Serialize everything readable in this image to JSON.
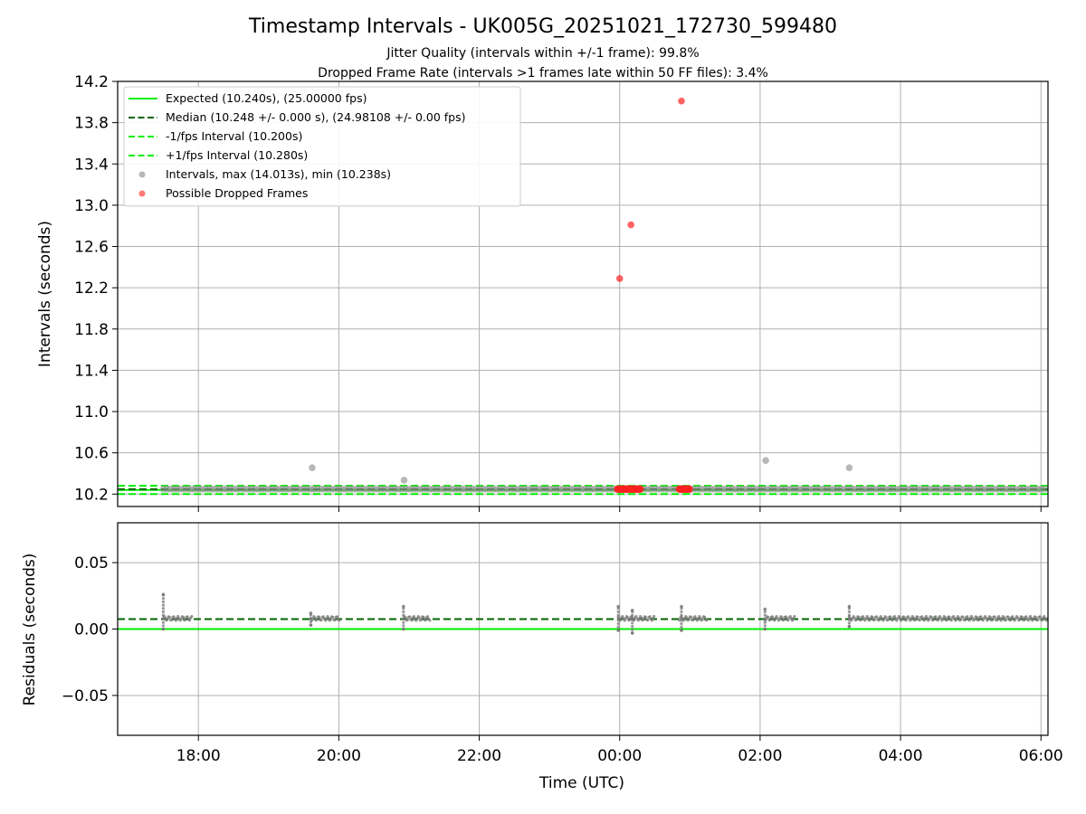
{
  "figure": {
    "title": "Timestamp Intervals - UK005G_20251021_172730_599480",
    "subtitle_jitter": "Jitter Quality (intervals within +/-1 frame): 99.8%",
    "subtitle_dropped": "Dropped Frame Rate (intervals >1 frames late within 50 FF files): 3.4%",
    "x_axis_label": "Time (UTC)"
  },
  "colors": {
    "expected": "#00ee00",
    "median": "#006400",
    "fps_interval": "#00ee00",
    "intervals": "#888888",
    "dropped": "#ff2020",
    "grid": "#b0b0b0"
  },
  "chart_data": [
    {
      "type": "scatter",
      "ylabel": "Intervals (seconds)",
      "xlim_hours": [
        16.85,
        30.1
      ],
      "ylim": [
        10.08,
        14.2
      ],
      "y_ticks": [
        "10.2",
        "10.6",
        "11.0",
        "11.4",
        "11.8",
        "12.2",
        "12.6",
        "13.0",
        "13.4",
        "13.8",
        "14.2"
      ],
      "grid": true,
      "legend_placement": "upper-left",
      "reference_lines": [
        {
          "name": "Expected (10.240s), (25.00000 fps)",
          "y": 10.24,
          "style": "solid",
          "color": "#00ee00"
        },
        {
          "name": "Median (10.248 +/- 0.000 s), (24.98108 +/- 0.00 fps)",
          "y": 10.248,
          "style": "dashed",
          "color": "#006400"
        },
        {
          "name": "-1/fps Interval (10.200s)",
          "y": 10.2,
          "style": "dashed",
          "color": "#00ee00"
        },
        {
          "name": "+1/fps Interval (10.280s)",
          "y": 10.28,
          "style": "dashed",
          "color": "#00ee00"
        }
      ],
      "series": [
        {
          "name": "Intervals, max (14.013s), min (10.238s)",
          "marker": "circle",
          "color": "#888888",
          "x_start_hours": 17.5,
          "x_end_hours": 30.1,
          "baseline_y": 10.248,
          "outliers": [
            [
              19.62,
              10.455
            ],
            [
              20.93,
              10.335
            ],
            [
              26.08,
              10.525
            ],
            [
              27.27,
              10.455
            ]
          ]
        },
        {
          "name": "Possible Dropped Frames",
          "marker": "circle",
          "color": "#ff2020",
          "points": [
            [
              24.0,
              12.29
            ],
            [
              24.16,
              12.81
            ],
            [
              24.88,
              14.01
            ]
          ],
          "clusters": [
            {
              "x_from": 23.97,
              "x_to": 24.3,
              "y": 10.248
            },
            {
              "x_from": 24.85,
              "x_to": 25.0,
              "y": 10.248
            }
          ]
        }
      ]
    },
    {
      "type": "scatter",
      "ylabel": "Residuals (seconds)",
      "xlim_hours": [
        16.85,
        30.1
      ],
      "ylim": [
        -0.08,
        0.08
      ],
      "y_ticks": [
        "−0.05",
        "0.00",
        "0.05"
      ],
      "y_tick_values": [
        -0.05,
        0,
        0.05
      ],
      "x_ticks": [
        "18:00",
        "20:00",
        "22:00",
        "00:00",
        "02:00",
        "04:00",
        "06:00"
      ],
      "x_tick_hours": [
        18,
        20,
        22,
        24,
        26,
        28,
        30
      ],
      "grid": true,
      "reference_lines": [
        {
          "name": "zero",
          "y": 0,
          "style": "solid",
          "color": "#00ee00"
        },
        {
          "name": "median residual",
          "y": 0.0075,
          "style": "dashed",
          "color": "#006400"
        }
      ],
      "series": [
        {
          "name": "residuals",
          "marker": "circle",
          "color": "#777777",
          "baseline_y": 0.008,
          "segments": [
            [
              17.5,
              17.92
            ],
            [
              19.6,
              20.02
            ],
            [
              20.92,
              21.3
            ],
            [
              23.98,
              24.5
            ],
            [
              24.85,
              25.25
            ],
            [
              26.07,
              26.5
            ],
            [
              27.27,
              27.6
            ],
            [
              27.6,
              30.1
            ]
          ],
          "spikes": [
            [
              17.5,
              0.026
            ],
            [
              17.5,
              0.0
            ],
            [
              19.6,
              0.012
            ],
            [
              19.6,
              0.003
            ],
            [
              20.92,
              0.017
            ],
            [
              20.92,
              0.0
            ],
            [
              23.98,
              0.017
            ],
            [
              23.98,
              -0.001
            ],
            [
              24.18,
              0.014
            ],
            [
              24.18,
              -0.003
            ],
            [
              24.88,
              0.017
            ],
            [
              24.88,
              -0.001
            ],
            [
              26.07,
              0.015
            ],
            [
              26.07,
              0.0
            ],
            [
              27.27,
              0.017
            ],
            [
              27.27,
              0.002
            ]
          ]
        }
      ]
    }
  ]
}
